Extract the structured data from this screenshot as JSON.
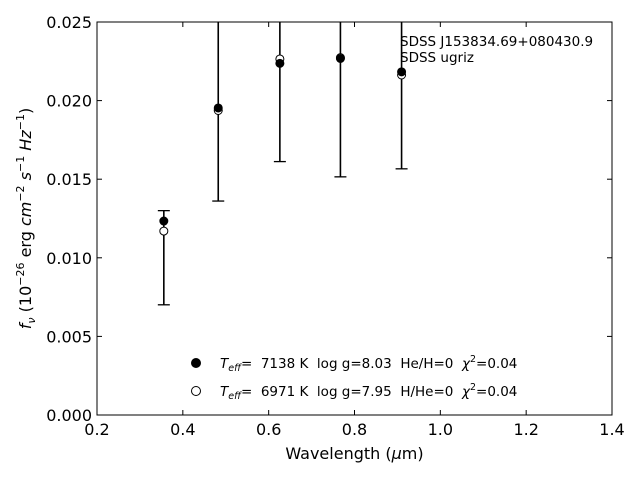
{
  "chart_data": {
    "type": "scatter",
    "xlabel": "Wavelength (μm)",
    "ylabel": "f_ν (10^-26 erg cm^-2 s^-1 Hz^-1)",
    "xlim": [
      0.2,
      1.4
    ],
    "ylim": [
      0.0,
      0.025
    ],
    "x_ticks": [
      "0.2",
      "0.4",
      "0.6",
      "0.8",
      "1.0",
      "1.2",
      "1.4"
    ],
    "y_ticks": [
      "0.000",
      "0.005",
      "0.010",
      "0.015",
      "0.020",
      "0.025"
    ],
    "grid": false,
    "legend_position": "bottom-center",
    "annotation": {
      "line1": "SDSS J153834.69+080430.9",
      "line2": "SDSS ugriz"
    },
    "observed": {
      "x": [
        0.3557,
        0.4825,
        0.6261,
        0.7672,
        0.9097
      ],
      "y": [
        0.01234,
        0.01953,
        0.02237,
        0.02268,
        0.02183
      ],
      "err_low": [
        0.00701,
        0.01361,
        0.01612,
        0.01515,
        0.01566
      ],
      "err_high": [
        0.013,
        0.025,
        0.025,
        0.025,
        0.025
      ]
    },
    "series": [
      {
        "marker": "filled-circle",
        "teff_prefix": "T",
        "teff_sub": "eff",
        "teff_rest": "=  7138 K  log g=8.03  He/H=0  ",
        "chi_prefix": "χ",
        "chi_sup": "2",
        "chi_rest": "=0.04",
        "x": [
          0.3557,
          0.4825,
          0.6261,
          0.7672,
          0.9097
        ],
        "y": [
          0.01234,
          0.01953,
          0.02237,
          0.02268,
          0.02183
        ]
      },
      {
        "marker": "open-circle",
        "teff_prefix": "T",
        "teff_sub": "eff",
        "teff_rest": "=  6971 K  log g=7.95  H/He=0  ",
        "chi_prefix": "χ",
        "chi_sup": "2",
        "chi_rest": "=0.04",
        "x": [
          0.3557,
          0.4825,
          0.6261,
          0.7672,
          0.9097
        ],
        "y": [
          0.0117,
          0.01937,
          0.02265,
          0.02273,
          0.02163
        ]
      }
    ]
  }
}
